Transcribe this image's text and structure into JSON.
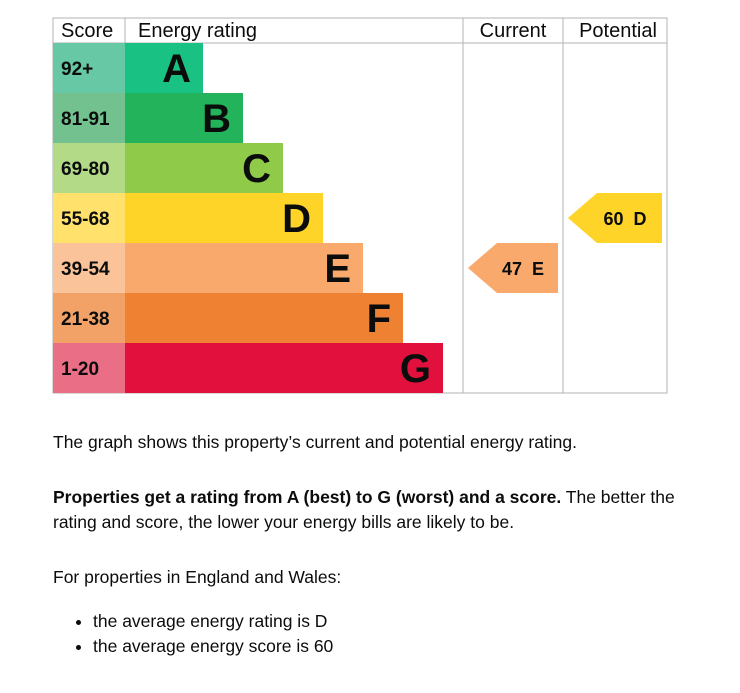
{
  "chart_data": {
    "type": "bar",
    "headers": {
      "score": "Score",
      "rating": "Energy rating",
      "current": "Current",
      "potential": "Potential"
    },
    "bands": [
      {
        "letter": "A",
        "range": "92+",
        "color": "#19c282",
        "score_bg": "#66c8a4"
      },
      {
        "letter": "B",
        "range": "81-91",
        "color": "#22b35b",
        "score_bg": "#73c18f"
      },
      {
        "letter": "C",
        "range": "69-80",
        "color": "#8fcb48",
        "score_bg": "#b2da87"
      },
      {
        "letter": "D",
        "range": "55-68",
        "color": "#ffd429",
        "score_bg": "#ffe16c"
      },
      {
        "letter": "E",
        "range": "39-54",
        "color": "#f9a96c",
        "score_bg": "#fbc399"
      },
      {
        "letter": "F",
        "range": "21-38",
        "color": "#ee8132",
        "score_bg": "#f2a167"
      },
      {
        "letter": "G",
        "range": "1-20",
        "color": "#e2103d",
        "score_bg": "#ea6e86"
      }
    ],
    "current": {
      "score": 47,
      "letter": "E",
      "label": "47  E",
      "color": "#f9a96c"
    },
    "potential": {
      "score": 60,
      "letter": "D",
      "label": "60  D",
      "color": "#ffd429"
    }
  },
  "text": {
    "line1": "The graph shows this property’s current and potential energy rating.",
    "bold": "Properties get a rating from A (best) to G (worst) and a score.",
    "rest": " The better the rating and score, the lower your energy bills are likely to be.",
    "england": "For properties in England and Wales:",
    "bullets": [
      "the average energy rating is D",
      "the average energy score is 60"
    ]
  }
}
